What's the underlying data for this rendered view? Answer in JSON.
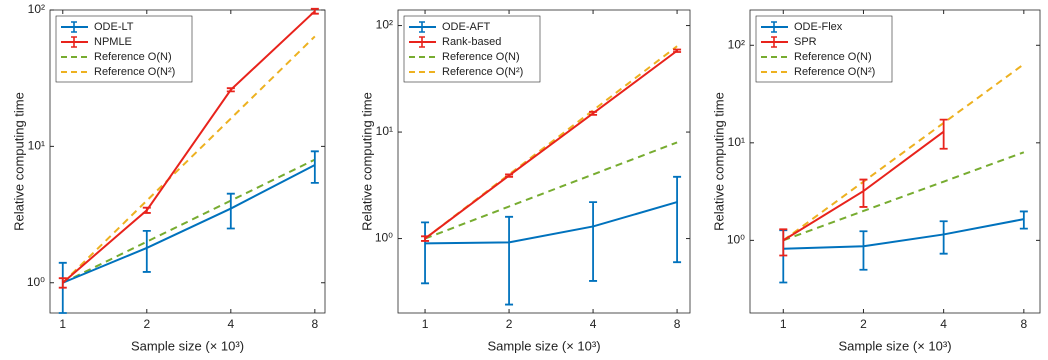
{
  "chart_data": [
    {
      "type": "line",
      "xlabel": "Sample size (× 10³)",
      "ylabel": "Relative computing time",
      "x": [
        1,
        2,
        4,
        8
      ],
      "xscale": "log",
      "xlim": [
        0.9,
        8.7
      ],
      "xticks": [
        1,
        2,
        4,
        8
      ],
      "yscale": "log",
      "ylim": [
        0.6,
        100
      ],
      "yticks": [
        {
          "value": 1,
          "label": "10⁰"
        },
        {
          "value": 10,
          "label": "10¹"
        },
        {
          "value": 100,
          "label": "10²"
        }
      ],
      "legend": "upper left",
      "series": [
        {
          "name": "ODE-LT",
          "color": "#0072bd",
          "style": "solid",
          "values": [
            1,
            1.8,
            3.5,
            7.3
          ],
          "errors": [
            0.4,
            0.6,
            1.0,
            1.9
          ]
        },
        {
          "name": "NPMLE",
          "color": "#e8231c",
          "style": "solid",
          "values": [
            1,
            3.4,
            26,
            98
          ],
          "errors": [
            0.08,
            0.15,
            0.7,
            4
          ]
        },
        {
          "name": "Reference O(N)",
          "color": "#77ac30",
          "style": "dashed",
          "values": [
            1,
            2,
            4,
            8
          ]
        },
        {
          "name": "Reference O(N²)",
          "color": "#edb120",
          "style": "dashed",
          "values": [
            1,
            4,
            16,
            64
          ]
        }
      ]
    },
    {
      "type": "line",
      "xlabel": "Sample size (× 10³)",
      "ylabel": "Relative computing time",
      "x": [
        1,
        2,
        4,
        8
      ],
      "xscale": "log",
      "xlim": [
        0.8,
        8.9
      ],
      "xticks": [
        1,
        2,
        4,
        8
      ],
      "yscale": "log",
      "ylim": [
        0.2,
        140
      ],
      "yticks": [
        {
          "value": 1,
          "label": "10⁰"
        },
        {
          "value": 10,
          "label": "10¹"
        },
        {
          "value": 100,
          "label": "10²"
        }
      ],
      "legend": "upper left",
      "series": [
        {
          "name": "ODE-AFT",
          "color": "#0072bd",
          "style": "solid",
          "values": [
            0.9,
            0.92,
            1.3,
            2.2
          ],
          "errors": [
            0.52,
            0.68,
            0.9,
            1.6
          ]
        },
        {
          "name": "Rank-based",
          "color": "#e8231c",
          "style": "solid",
          "values": [
            1,
            3.9,
            15,
            58
          ],
          "errors": [
            0.05,
            0.1,
            0.5,
            1.5
          ]
        },
        {
          "name": "Reference O(N)",
          "color": "#77ac30",
          "style": "dashed",
          "values": [
            1,
            2,
            4,
            8
          ]
        },
        {
          "name": "Reference O(N²)",
          "color": "#edb120",
          "style": "dashed",
          "values": [
            1,
            4,
            16,
            64
          ]
        }
      ]
    },
    {
      "type": "line",
      "xlabel": "Sample size (× 10³)",
      "ylabel": "Relative computing time",
      "x": [
        1,
        2,
        4,
        8
      ],
      "xscale": "log",
      "xlim": [
        0.75,
        9.2
      ],
      "xticks": [
        1,
        2,
        4,
        8
      ],
      "yscale": "log",
      "ylim": [
        0.18,
        230
      ],
      "yticks": [
        {
          "value": 1,
          "label": "10⁰"
        },
        {
          "value": 10,
          "label": "10¹"
        },
        {
          "value": 100,
          "label": "10²"
        }
      ],
      "legend": "upper left",
      "series": [
        {
          "name": "ODE-Flex",
          "color": "#0072bd",
          "style": "solid",
          "values": [
            0.82,
            0.87,
            1.15,
            1.65
          ],
          "errors": [
            0.45,
            0.37,
            0.42,
            0.33
          ]
        },
        {
          "name": "SPR",
          "color": "#e8231c",
          "style": "solid",
          "values": [
            1,
            3.2,
            13,
            null
          ],
          "errors": [
            0.3,
            1.0,
            4.3,
            null
          ]
        },
        {
          "name": "Reference O(N)",
          "color": "#77ac30",
          "style": "dashed",
          "values": [
            1,
            2,
            4,
            8
          ]
        },
        {
          "name": "Reference O(N²)",
          "color": "#edb120",
          "style": "dashed",
          "values": [
            1,
            4,
            16,
            64
          ]
        }
      ]
    }
  ]
}
